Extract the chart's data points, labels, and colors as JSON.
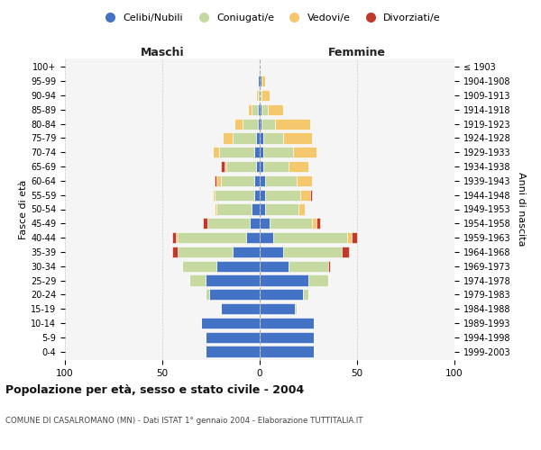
{
  "age_groups": [
    "0-4",
    "5-9",
    "10-14",
    "15-19",
    "20-24",
    "25-29",
    "30-34",
    "35-39",
    "40-44",
    "45-49",
    "50-54",
    "55-59",
    "60-64",
    "65-69",
    "70-74",
    "75-79",
    "80-84",
    "85-89",
    "90-94",
    "95-99",
    "100+"
  ],
  "birth_years": [
    "1999-2003",
    "1994-1998",
    "1989-1993",
    "1984-1988",
    "1979-1983",
    "1974-1978",
    "1969-1973",
    "1964-1968",
    "1959-1963",
    "1954-1958",
    "1949-1953",
    "1944-1948",
    "1939-1943",
    "1934-1938",
    "1929-1933",
    "1924-1928",
    "1919-1923",
    "1914-1918",
    "1909-1913",
    "1904-1908",
    "≤ 1903"
  ],
  "maschi": {
    "celibi": [
      28,
      28,
      30,
      20,
      26,
      28,
      22,
      14,
      7,
      5,
      4,
      3,
      3,
      2,
      3,
      2,
      1,
      1,
      0,
      1,
      0
    ],
    "coniugati": [
      0,
      0,
      0,
      0,
      2,
      8,
      18,
      28,
      35,
      22,
      18,
      20,
      17,
      15,
      18,
      12,
      8,
      3,
      1,
      0,
      0
    ],
    "vedovi": [
      0,
      0,
      0,
      0,
      0,
      0,
      0,
      0,
      1,
      0,
      1,
      1,
      2,
      1,
      3,
      5,
      4,
      2,
      1,
      0,
      0
    ],
    "divorziati": [
      0,
      0,
      0,
      0,
      0,
      0,
      0,
      3,
      2,
      2,
      0,
      0,
      1,
      2,
      0,
      0,
      0,
      0,
      0,
      0,
      0
    ]
  },
  "femmine": {
    "nubili": [
      28,
      28,
      28,
      18,
      22,
      25,
      15,
      12,
      7,
      5,
      3,
      3,
      3,
      2,
      2,
      2,
      1,
      1,
      0,
      1,
      0
    ],
    "coniugate": [
      0,
      0,
      0,
      1,
      3,
      10,
      20,
      30,
      38,
      22,
      17,
      18,
      16,
      13,
      15,
      10,
      7,
      3,
      1,
      0,
      0
    ],
    "vedove": [
      0,
      0,
      0,
      0,
      0,
      0,
      0,
      0,
      2,
      2,
      3,
      5,
      8,
      10,
      12,
      15,
      18,
      8,
      4,
      2,
      0
    ],
    "divorziate": [
      0,
      0,
      0,
      0,
      0,
      0,
      1,
      4,
      3,
      2,
      0,
      1,
      0,
      0,
      0,
      0,
      0,
      0,
      0,
      0,
      0
    ]
  },
  "colors": {
    "celibi": "#4472c4",
    "coniugati": "#c5d9a0",
    "vedovi": "#f5c86e",
    "divorziati": "#c0392b"
  },
  "xlim": 100,
  "title": "Popolazione per età, sesso e stato civile - 2004",
  "subtitle": "COMUNE DI CASALROMANO (MN) - Dati ISTAT 1° gennaio 2004 - Elaborazione TUTTITALIA.IT",
  "ylabel_left": "Fasce di età",
  "ylabel_right": "Anni di nascita",
  "xlabel_left": "Maschi",
  "xlabel_right": "Femmine",
  "legend_labels": [
    "Celibi/Nubili",
    "Coniugati/e",
    "Vedovi/e",
    "Divorziati/e"
  ],
  "bg_color": "#f5f5f5",
  "grid_color": "#cccccc"
}
